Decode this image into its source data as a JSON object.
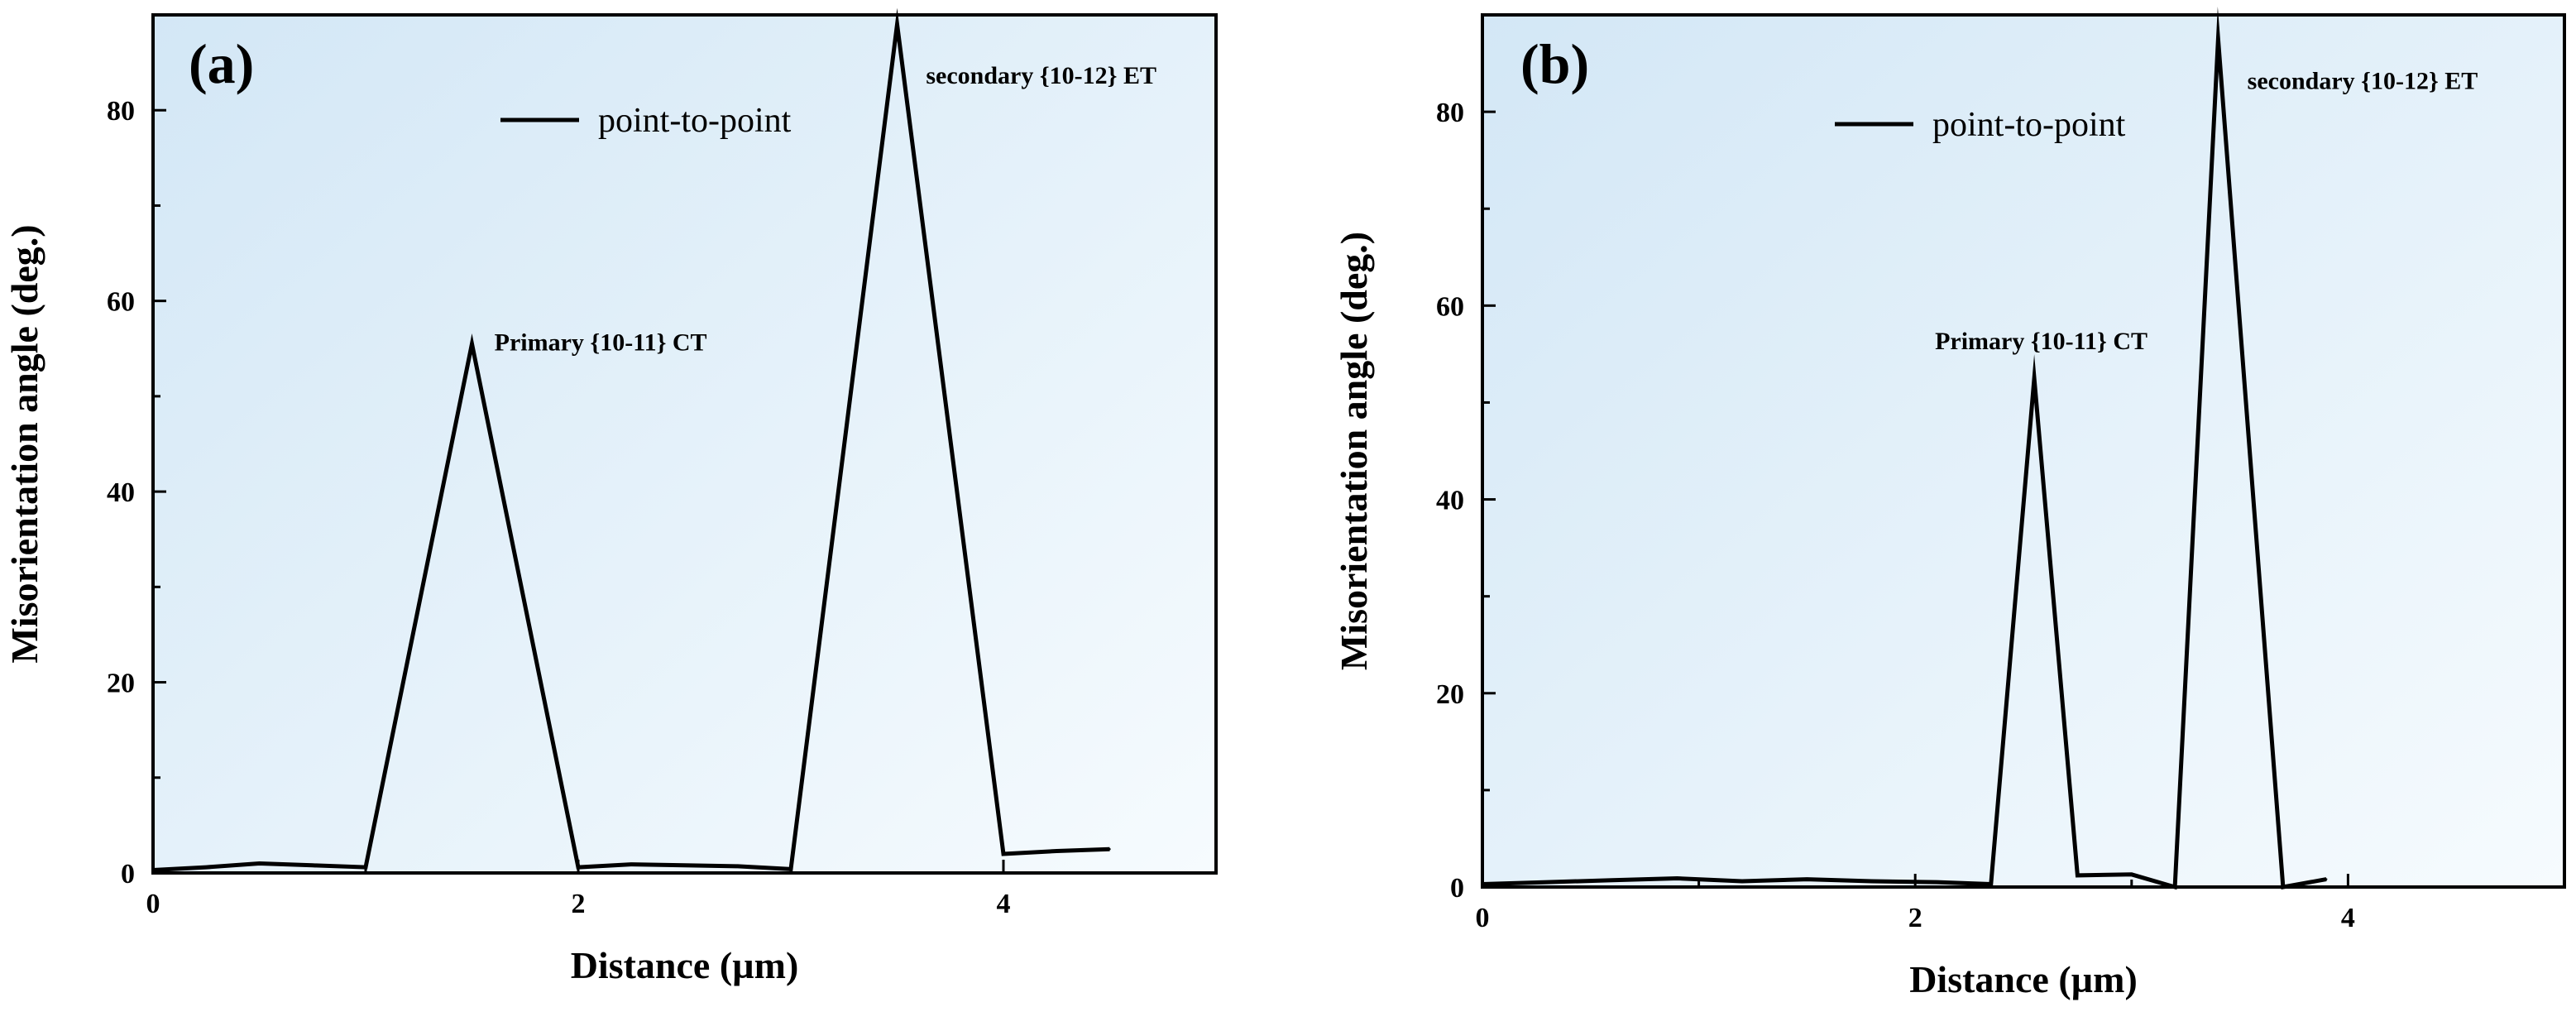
{
  "chart_data": [
    {
      "type": "line",
      "panel_label": "(a)",
      "xlabel": "Distance (µm)",
      "ylabel": "Misorientation angle (deg.)",
      "xlim": [
        0,
        5
      ],
      "ylim": [
        0,
        90
      ],
      "x_ticks": [
        "0",
        "2",
        "4"
      ],
      "y_ticks": [
        "0",
        "20",
        "40",
        "60",
        "80"
      ],
      "grid": false,
      "background": "light blue gradient",
      "legend": {
        "position": "top-center",
        "entries": [
          "point-to-point"
        ]
      },
      "series": [
        {
          "name": "point-to-point",
          "color": "#000000",
          "x": [
            0,
            0.25,
            0.5,
            0.75,
            1.0,
            1.5,
            2.0,
            2.25,
            2.5,
            2.75,
            3.0,
            3.5,
            4.0,
            4.25,
            4.5
          ],
          "y": [
            0.3,
            0.6,
            1.0,
            0.8,
            0.6,
            55.5,
            0.6,
            0.9,
            0.8,
            0.7,
            0.4,
            89.0,
            2.0,
            2.3,
            2.5
          ]
        },
        {
          "name": "",
          "color": "#000000",
          "x": [],
          "y": []
        }
      ],
      "annotations": [
        {
          "text": "Primary {10-11} CT",
          "x": 1.52,
          "y": 55.5
        },
        {
          "text": "secondary {10-12} ET",
          "x": 3.55,
          "y": 88.0
        }
      ]
    },
    {
      "type": "line",
      "panel_label": "(b)",
      "xlabel": "Distance (µm)",
      "ylabel": "Misorientation angle (deg.)",
      "xlim": [
        0,
        5
      ],
      "ylim": [
        0,
        90
      ],
      "x_ticks": [
        "0",
        "2",
        "4"
      ],
      "y_ticks": [
        "0",
        "20",
        "40",
        "60",
        "80"
      ],
      "grid": false,
      "background": "light blue gradient",
      "legend": {
        "position": "top-center",
        "entries": [
          "point-to-point"
        ]
      },
      "series": [
        {
          "name": "point-to-point",
          "color": "#000000",
          "x": [
            0,
            0.3,
            0.6,
            0.9,
            1.2,
            1.5,
            1.8,
            2.1,
            2.35,
            2.55,
            2.75,
            3.0,
            3.2,
            3.4,
            3.7,
            3.9
          ],
          "y": [
            0.3,
            0.5,
            0.7,
            0.9,
            0.6,
            0.8,
            0.6,
            0.5,
            0.3,
            52.5,
            1.2,
            1.3,
            0.0,
            87.5,
            0.0,
            0.8
          ]
        }
      ],
      "annotations": [
        {
          "text": "Primary {10-11} CT",
          "x": 2.55,
          "y": 52.5
        },
        {
          "text": "secondary {10-12} ET",
          "x": 3.42,
          "y": 87.5
        }
      ]
    }
  ]
}
